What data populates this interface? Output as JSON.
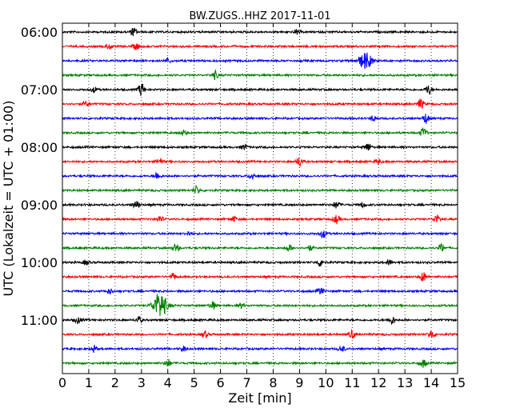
{
  "chart_data": {
    "type": "line",
    "title": "BW.ZUGS..HHZ 2017-11-01",
    "xlabel": "Zeit  [min]",
    "ylabel": "UTC (Lokalzeit = UTC + 01:00)",
    "xlim": [
      0,
      15
    ],
    "x_ticks": [
      "0",
      "1",
      "2",
      "3",
      "4",
      "5",
      "6",
      "7",
      "8",
      "9",
      "10",
      "11",
      "12",
      "13",
      "14",
      "15"
    ],
    "y_tick_labels": [
      "06:00",
      "07:00",
      "08:00",
      "09:00",
      "10:00",
      "11:00"
    ],
    "trace_interval_min": 15,
    "grid": "vertical dotted",
    "colors": [
      "#000000",
      "#ff0000",
      "#0000ff",
      "#008000"
    ],
    "traces": [
      {
        "start": "06:00",
        "events": [
          [
            2.7,
            5
          ],
          [
            8.9,
            3
          ]
        ]
      },
      {
        "start": "06:15",
        "events": [
          [
            1.8,
            3
          ],
          [
            2.8,
            4
          ]
        ]
      },
      {
        "start": "06:30",
        "events": [
          [
            4.0,
            3
          ],
          [
            11.5,
            10
          ]
        ]
      },
      {
        "start": "06:45",
        "events": [
          [
            5.8,
            5
          ]
        ]
      },
      {
        "start": "07:00",
        "events": [
          [
            1.2,
            3
          ],
          [
            3.0,
            8
          ],
          [
            13.9,
            6
          ]
        ]
      },
      {
        "start": "07:15",
        "events": [
          [
            0.9,
            3
          ],
          [
            13.6,
            6
          ]
        ]
      },
      {
        "start": "07:30",
        "events": [
          [
            11.8,
            3
          ],
          [
            13.8,
            6
          ]
        ]
      },
      {
        "start": "07:45",
        "events": [
          [
            4.6,
            3
          ],
          [
            13.7,
            6
          ]
        ]
      },
      {
        "start": "08:00",
        "events": [
          [
            6.9,
            3
          ],
          [
            11.6,
            5
          ]
        ]
      },
      {
        "start": "08:15",
        "events": [
          [
            3.7,
            4
          ],
          [
            9.0,
            6
          ],
          [
            12.0,
            3
          ]
        ]
      },
      {
        "start": "08:30",
        "events": [
          [
            3.6,
            5
          ],
          [
            7.2,
            4
          ]
        ]
      },
      {
        "start": "08:45",
        "events": [
          [
            5.1,
            5
          ]
        ]
      },
      {
        "start": "09:00",
        "events": [
          [
            2.8,
            5
          ],
          [
            10.4,
            4
          ],
          [
            11.4,
            3
          ]
        ]
      },
      {
        "start": "09:15",
        "events": [
          [
            3.7,
            4
          ],
          [
            6.5,
            3
          ],
          [
            10.4,
            5
          ],
          [
            14.2,
            5
          ]
        ]
      },
      {
        "start": "09:30",
        "events": [
          [
            4.8,
            3
          ],
          [
            9.9,
            5
          ]
        ]
      },
      {
        "start": "09:45",
        "events": [
          [
            4.3,
            5
          ],
          [
            8.6,
            4
          ],
          [
            9.4,
            3
          ],
          [
            14.4,
            5
          ]
        ]
      },
      {
        "start": "10:00",
        "events": [
          [
            0.9,
            3
          ],
          [
            9.8,
            5
          ],
          [
            12.4,
            3
          ]
        ]
      },
      {
        "start": "10:15",
        "events": [
          [
            4.2,
            4
          ],
          [
            13.7,
            6
          ]
        ]
      },
      {
        "start": "10:30",
        "events": [
          [
            1.8,
            3
          ],
          [
            9.8,
            4
          ]
        ]
      },
      {
        "start": "10:45",
        "events": [
          [
            3.7,
            16
          ],
          [
            5.7,
            5
          ],
          [
            6.8,
            3
          ]
        ]
      },
      {
        "start": "11:00",
        "events": [
          [
            0.6,
            4
          ],
          [
            2.9,
            4
          ],
          [
            12.5,
            5
          ]
        ]
      },
      {
        "start": "11:15",
        "events": [
          [
            5.4,
            4
          ],
          [
            11.0,
            5
          ],
          [
            14.0,
            6
          ]
        ]
      },
      {
        "start": "11:30",
        "events": [
          [
            1.2,
            4
          ],
          [
            4.6,
            3
          ],
          [
            10.6,
            4
          ]
        ]
      },
      {
        "start": "11:45",
        "events": [
          [
            4.0,
            5
          ],
          [
            13.7,
            5
          ]
        ]
      }
    ]
  }
}
